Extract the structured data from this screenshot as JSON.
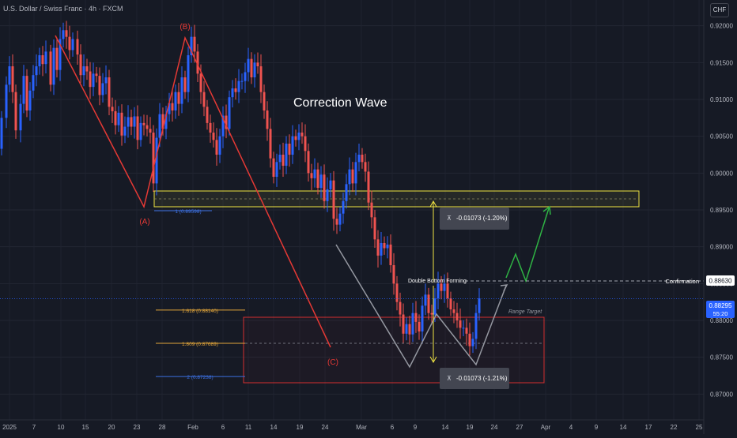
{
  "header": {
    "symbol_title": "U.S. Dollar / Swiss Franc · 4h · FXCM",
    "currency_badge": "CHF"
  },
  "chart_data": {
    "type": "candlestick",
    "title": "Correction Wave",
    "ylim": [
      0.8665,
      0.9235
    ],
    "y_ticks": [
      "0.92000",
      "0.91500",
      "0.91000",
      "0.90500",
      "0.90000",
      "0.89500",
      "0.89000",
      "0.88500",
      "0.88000",
      "0.87500",
      "0.87000"
    ],
    "x_ticks": [
      "2025",
      "7",
      "10",
      "15",
      "20",
      "23",
      "28",
      "Feb",
      "6",
      "11",
      "14",
      "19",
      "24",
      "Mar",
      "6",
      "9",
      "14",
      "19",
      "24",
      "27",
      "Apr",
      "4",
      "9",
      "14",
      "17",
      "22",
      "25"
    ],
    "price_path": [
      [
        0,
        0.9033
      ],
      [
        6,
        0.9075
      ],
      [
        10,
        0.912
      ],
      [
        14,
        0.9145
      ],
      [
        18,
        0.911
      ],
      [
        24,
        0.9058
      ],
      [
        28,
        0.9094
      ],
      [
        32,
        0.9132
      ],
      [
        36,
        0.9085
      ],
      [
        40,
        0.9112
      ],
      [
        44,
        0.9133
      ],
      [
        48,
        0.9145
      ],
      [
        52,
        0.916
      ],
      [
        56,
        0.9148
      ],
      [
        62,
        0.9165
      ],
      [
        66,
        0.912
      ],
      [
        70,
        0.917
      ],
      [
        74,
        0.914
      ],
      [
        78,
        0.9182
      ],
      [
        82,
        0.9194
      ],
      [
        86,
        0.9185
      ],
      [
        90,
        0.9167
      ],
      [
        96,
        0.9182
      ],
      [
        100,
        0.9161
      ],
      [
        104,
        0.9133
      ],
      [
        108,
        0.9145
      ],
      [
        112,
        0.9138
      ],
      [
        116,
        0.9117
      ],
      [
        120,
        0.9135
      ],
      [
        124,
        0.9132
      ],
      [
        128,
        0.9106
      ],
      [
        132,
        0.9122
      ],
      [
        136,
        0.913
      ],
      [
        140,
        0.909
      ],
      [
        144,
        0.9084
      ],
      [
        148,
        0.9065
      ],
      [
        152,
        0.9082
      ],
      [
        156,
        0.9051
      ],
      [
        160,
        0.9063
      ],
      [
        164,
        0.9076
      ],
      [
        168,
        0.9063
      ],
      [
        172,
        0.9077
      ],
      [
        176,
        0.9045
      ],
      [
        180,
        0.9068
      ],
      [
        184,
        0.9065
      ],
      [
        188,
        0.906
      ],
      [
        192,
        0.9055
      ],
      [
        196,
        0.8986
      ],
      [
        200,
        0.9048
      ],
      [
        204,
        0.908
      ],
      [
        208,
        0.906
      ],
      [
        212,
        0.908
      ],
      [
        216,
        0.9095
      ],
      [
        220,
        0.9085
      ],
      [
        224,
        0.911
      ],
      [
        228,
        0.9094
      ],
      [
        232,
        0.913
      ],
      [
        236,
        0.911
      ],
      [
        240,
        0.916
      ],
      [
        244,
        0.9185
      ],
      [
        248,
        0.9165
      ],
      [
        252,
        0.9135
      ],
      [
        256,
        0.911
      ],
      [
        260,
        0.909
      ],
      [
        264,
        0.9068
      ],
      [
        268,
        0.9055
      ],
      [
        272,
        0.9045
      ],
      [
        276,
        0.9025
      ],
      [
        280,
        0.905
      ],
      [
        284,
        0.9078
      ],
      [
        288,
        0.906
      ],
      [
        292,
        0.9103
      ],
      [
        296,
        0.9115
      ],
      [
        300,
        0.911
      ],
      [
        304,
        0.9125
      ],
      [
        308,
        0.9125
      ],
      [
        312,
        0.9137
      ],
      [
        316,
        0.9155
      ],
      [
        320,
        0.913
      ],
      [
        324,
        0.915
      ],
      [
        328,
        0.9145
      ],
      [
        332,
        0.911
      ],
      [
        336,
        0.9085
      ],
      [
        340,
        0.906
      ],
      [
        344,
        0.902
      ],
      [
        348,
        0.8995
      ],
      [
        352,
        0.9015
      ],
      [
        356,
        0.9025
      ],
      [
        360,
        0.901
      ],
      [
        364,
        0.904
      ],
      [
        368,
        0.9025
      ],
      [
        372,
        0.905
      ],
      [
        376,
        0.9045
      ],
      [
        380,
        0.9055
      ],
      [
        384,
        0.905
      ],
      [
        388,
        0.903
      ],
      [
        392,
        0.9
      ],
      [
        396,
        0.8993
      ],
      [
        400,
        0.9005
      ],
      [
        404,
        0.898
      ],
      [
        408,
        0.8998
      ],
      [
        412,
        0.8962
      ],
      [
        416,
        0.8978
      ],
      [
        420,
        0.899
      ],
      [
        424,
        0.8938
      ],
      [
        428,
        0.893
      ],
      [
        432,
        0.8945
      ],
      [
        436,
        0.8962
      ],
      [
        440,
        0.8985
      ],
      [
        444,
        0.9005
      ],
      [
        448,
        0.8986
      ],
      [
        452,
        0.9015
      ],
      [
        456,
        0.9025
      ],
      [
        460,
        0.9015
      ],
      [
        464,
        0.9002
      ],
      [
        468,
        0.896
      ],
      [
        472,
        0.894
      ],
      [
        476,
        0.891
      ],
      [
        480,
        0.8888
      ],
      [
        484,
        0.8905
      ],
      [
        488,
        0.8898
      ],
      [
        492,
        0.8903
      ],
      [
        496,
        0.8875
      ],
      [
        500,
        0.885
      ],
      [
        504,
        0.8825
      ],
      [
        508,
        0.8808
      ],
      [
        512,
        0.8782
      ],
      [
        516,
        0.8795
      ],
      [
        520,
        0.8781
      ],
      [
        524,
        0.881
      ],
      [
        528,
        0.8798
      ],
      [
        532,
        0.8785
      ],
      [
        536,
        0.882
      ],
      [
        540,
        0.8835
      ],
      [
        544,
        0.881
      ],
      [
        548,
        0.8808
      ],
      [
        552,
        0.883
      ],
      [
        556,
        0.885
      ],
      [
        560,
        0.884
      ],
      [
        564,
        0.885
      ],
      [
        568,
        0.883
      ],
      [
        572,
        0.8815
      ],
      [
        576,
        0.881
      ],
      [
        580,
        0.88
      ],
      [
        584,
        0.879
      ],
      [
        588,
        0.879
      ],
      [
        592,
        0.8782
      ],
      [
        596,
        0.8765
      ],
      [
        600,
        0.8775
      ],
      [
        604,
        0.881
      ],
      [
        608,
        0.883
      ]
    ],
    "annotations": {
      "correction_title": "Correction Wave",
      "wave_labels": [
        "(A)",
        "(B)",
        "(C)"
      ],
      "fib_base_label": "1 (0.89598)",
      "fib_levels": [
        {
          "label": "1.618 (0.88140)",
          "value": 0.8814,
          "color": "#e0a43a"
        },
        {
          "label": "1.809 (0.87689)",
          "value": 0.87689,
          "color": "#e0a43a"
        },
        {
          "label": "2 (0.87238)",
          "value": 0.87238,
          "color": "#3b6fe0"
        }
      ],
      "measure_top_label": "-0.01073 (-1.20%)",
      "measure_bottom_label": "-0.01073 (-1.21%)",
      "double_bottom_label": "Double Bottom Forming",
      "range_target_label": "Range Target",
      "confirmation_label": "Confirmation",
      "confirmation_price": "0.88630",
      "current_price": "0.88295",
      "countdown": "55:20"
    },
    "colors": {
      "up": "#2962ff",
      "down": "#ef5350",
      "wave_red": "#e53935",
      "zone_yellow": "#f0e442",
      "range_red": "#d32f2f",
      "green_path": "#2fb344",
      "gray_path": "#9598a1"
    }
  }
}
